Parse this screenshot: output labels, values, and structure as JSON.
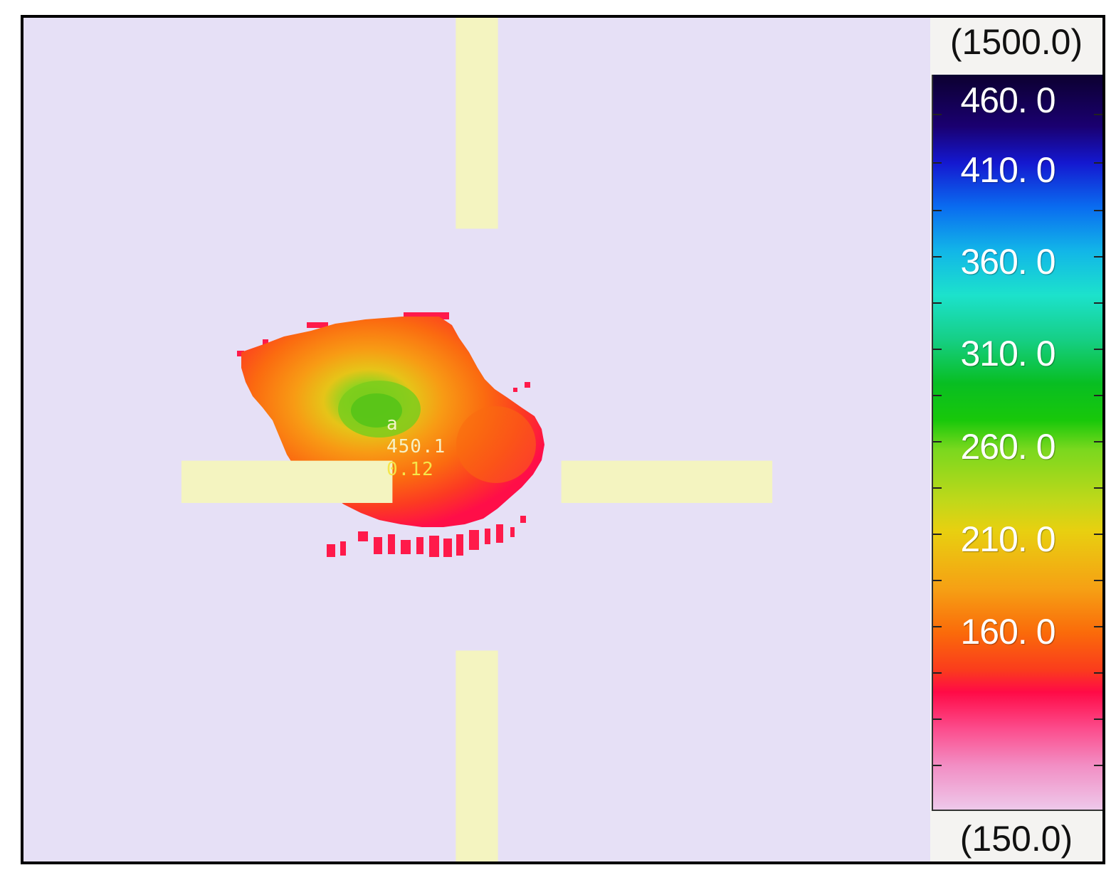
{
  "scale": {
    "range_max": "(1500.0)",
    "range_min": "(150.0)",
    "labels": [
      "460. 0",
      "410. 0",
      "360. 0",
      "310. 0",
      "260. 0",
      "210. 0",
      "160. 0"
    ]
  },
  "marker": {
    "name": "a",
    "temperature": "450.1",
    "emissivity": "0.12"
  },
  "colors": {
    "background": "#e6e0f6",
    "frame": "#000000",
    "hot_spot_core": "#6ad21e",
    "hot_spot_mid": "#fa8c14",
    "hot_spot_edge": "#ff1446"
  },
  "icons": {
    "crosshair": "crosshair-icon"
  }
}
